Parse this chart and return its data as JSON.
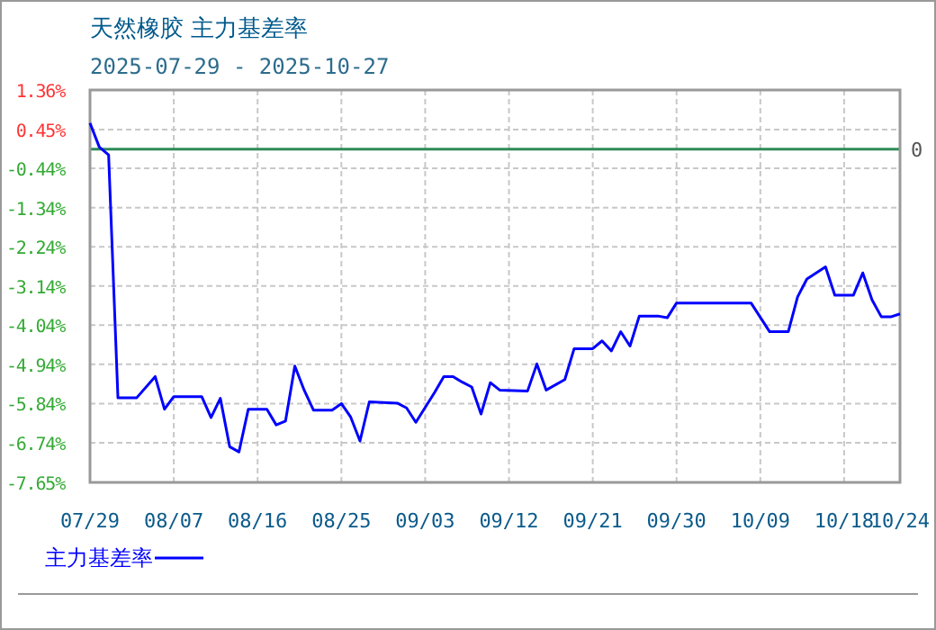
{
  "chart_data": {
    "type": "line",
    "title": "天然橡胶 主力基差率",
    "subtitle": "2025-07-29 - 2025-10-27",
    "x": [
      "2025-07-29",
      "2025-07-30",
      "2025-07-31",
      "2025-08-01",
      "2025-08-03",
      "2025-08-05",
      "2025-08-06",
      "2025-08-07",
      "2025-08-10",
      "2025-08-11",
      "2025-08-12",
      "2025-08-13",
      "2025-08-14",
      "2025-08-15",
      "2025-08-17",
      "2025-08-18",
      "2025-08-19",
      "2025-08-20",
      "2025-08-21",
      "2025-08-22",
      "2025-08-24",
      "2025-08-25",
      "2025-08-26",
      "2025-08-27",
      "2025-08-28",
      "2025-08-31",
      "2025-09-01",
      "2025-09-02",
      "2025-09-04",
      "2025-09-05",
      "2025-09-06",
      "2025-09-07",
      "2025-09-08",
      "2025-09-09",
      "2025-09-10",
      "2025-09-11",
      "2025-09-14",
      "2025-09-15",
      "2025-09-16",
      "2025-09-18",
      "2025-09-19",
      "2025-09-21",
      "2025-09-22",
      "2025-09-23",
      "2025-09-24",
      "2025-09-25",
      "2025-09-26",
      "2025-09-28",
      "2025-09-29",
      "2025-09-30",
      "2025-10-08",
      "2025-10-10",
      "2025-10-12",
      "2025-10-13",
      "2025-10-14",
      "2025-10-16",
      "2025-10-17",
      "2025-10-19",
      "2025-10-20",
      "2025-10-21",
      "2025-10-22",
      "2025-10-23",
      "2025-10-24"
    ],
    "series": [
      {
        "name": "主力基差率",
        "color": "#0000ff",
        "values": [
          0.6,
          0.05,
          -0.13,
          -5.71,
          -5.71,
          -5.22,
          -5.97,
          -5.68,
          -5.68,
          -6.16,
          -5.72,
          -6.83,
          -6.95,
          -5.97,
          -5.97,
          -6.33,
          -6.24,
          -4.98,
          -5.53,
          -5.99,
          -5.99,
          -5.84,
          -6.15,
          -6.7,
          -5.8,
          -5.83,
          -5.94,
          -6.27,
          -5.59,
          -5.22,
          -5.22,
          -5.35,
          -5.46,
          -6.08,
          -5.36,
          -5.53,
          -5.55,
          -4.93,
          -5.53,
          -5.29,
          -4.58,
          -4.58,
          -4.4,
          -4.63,
          -4.19,
          -4.52,
          -3.83,
          -3.83,
          -3.87,
          -3.53,
          -3.53,
          -4.19,
          -4.19,
          -3.39,
          -2.98,
          -2.7,
          -3.35,
          -3.35,
          -2.84,
          -3.46,
          -3.85,
          -3.85,
          -3.78
        ]
      }
    ],
    "xlim": [
      "2025-07-29",
      "2025-10-24"
    ],
    "xticks": [
      {
        "value": "2025-07-29",
        "label": "07/29"
      },
      {
        "value": "2025-08-07",
        "label": "08/07"
      },
      {
        "value": "2025-08-16",
        "label": "08/16"
      },
      {
        "value": "2025-08-25",
        "label": "08/25"
      },
      {
        "value": "2025-09-03",
        "label": "09/03"
      },
      {
        "value": "2025-09-12",
        "label": "09/12"
      },
      {
        "value": "2025-09-21",
        "label": "09/21"
      },
      {
        "value": "2025-09-30",
        "label": "09/30"
      },
      {
        "value": "2025-10-09",
        "label": "10/09"
      },
      {
        "value": "2025-10-18",
        "label": "10/18"
      },
      {
        "value": "2025-10-24",
        "label": "10/24"
      }
    ],
    "ylim": [
      -7.65,
      1.36
    ],
    "yticks": [
      {
        "value": 1.36,
        "label": "1.36%"
      },
      {
        "value": 0.45,
        "label": "0.45%"
      },
      {
        "value": -0.44,
        "label": "-0.44%"
      },
      {
        "value": -1.34,
        "label": "-1.34%"
      },
      {
        "value": -2.24,
        "label": "-2.24%"
      },
      {
        "value": -3.14,
        "label": "-3.14%"
      },
      {
        "value": -4.04,
        "label": "-4.04%"
      },
      {
        "value": -4.94,
        "label": "-4.94%"
      },
      {
        "value": -5.84,
        "label": "-5.84%"
      },
      {
        "value": -6.74,
        "label": "-6.74%"
      },
      {
        "value": -7.65,
        "label": "-7.65%"
      }
    ],
    "ref_lines": [
      {
        "axis": "y",
        "value": 0,
        "label": "0",
        "color": "#2e8b57"
      }
    ],
    "grid": true,
    "legend": "bottom left",
    "marker": "none",
    "line_style": "solid"
  }
}
